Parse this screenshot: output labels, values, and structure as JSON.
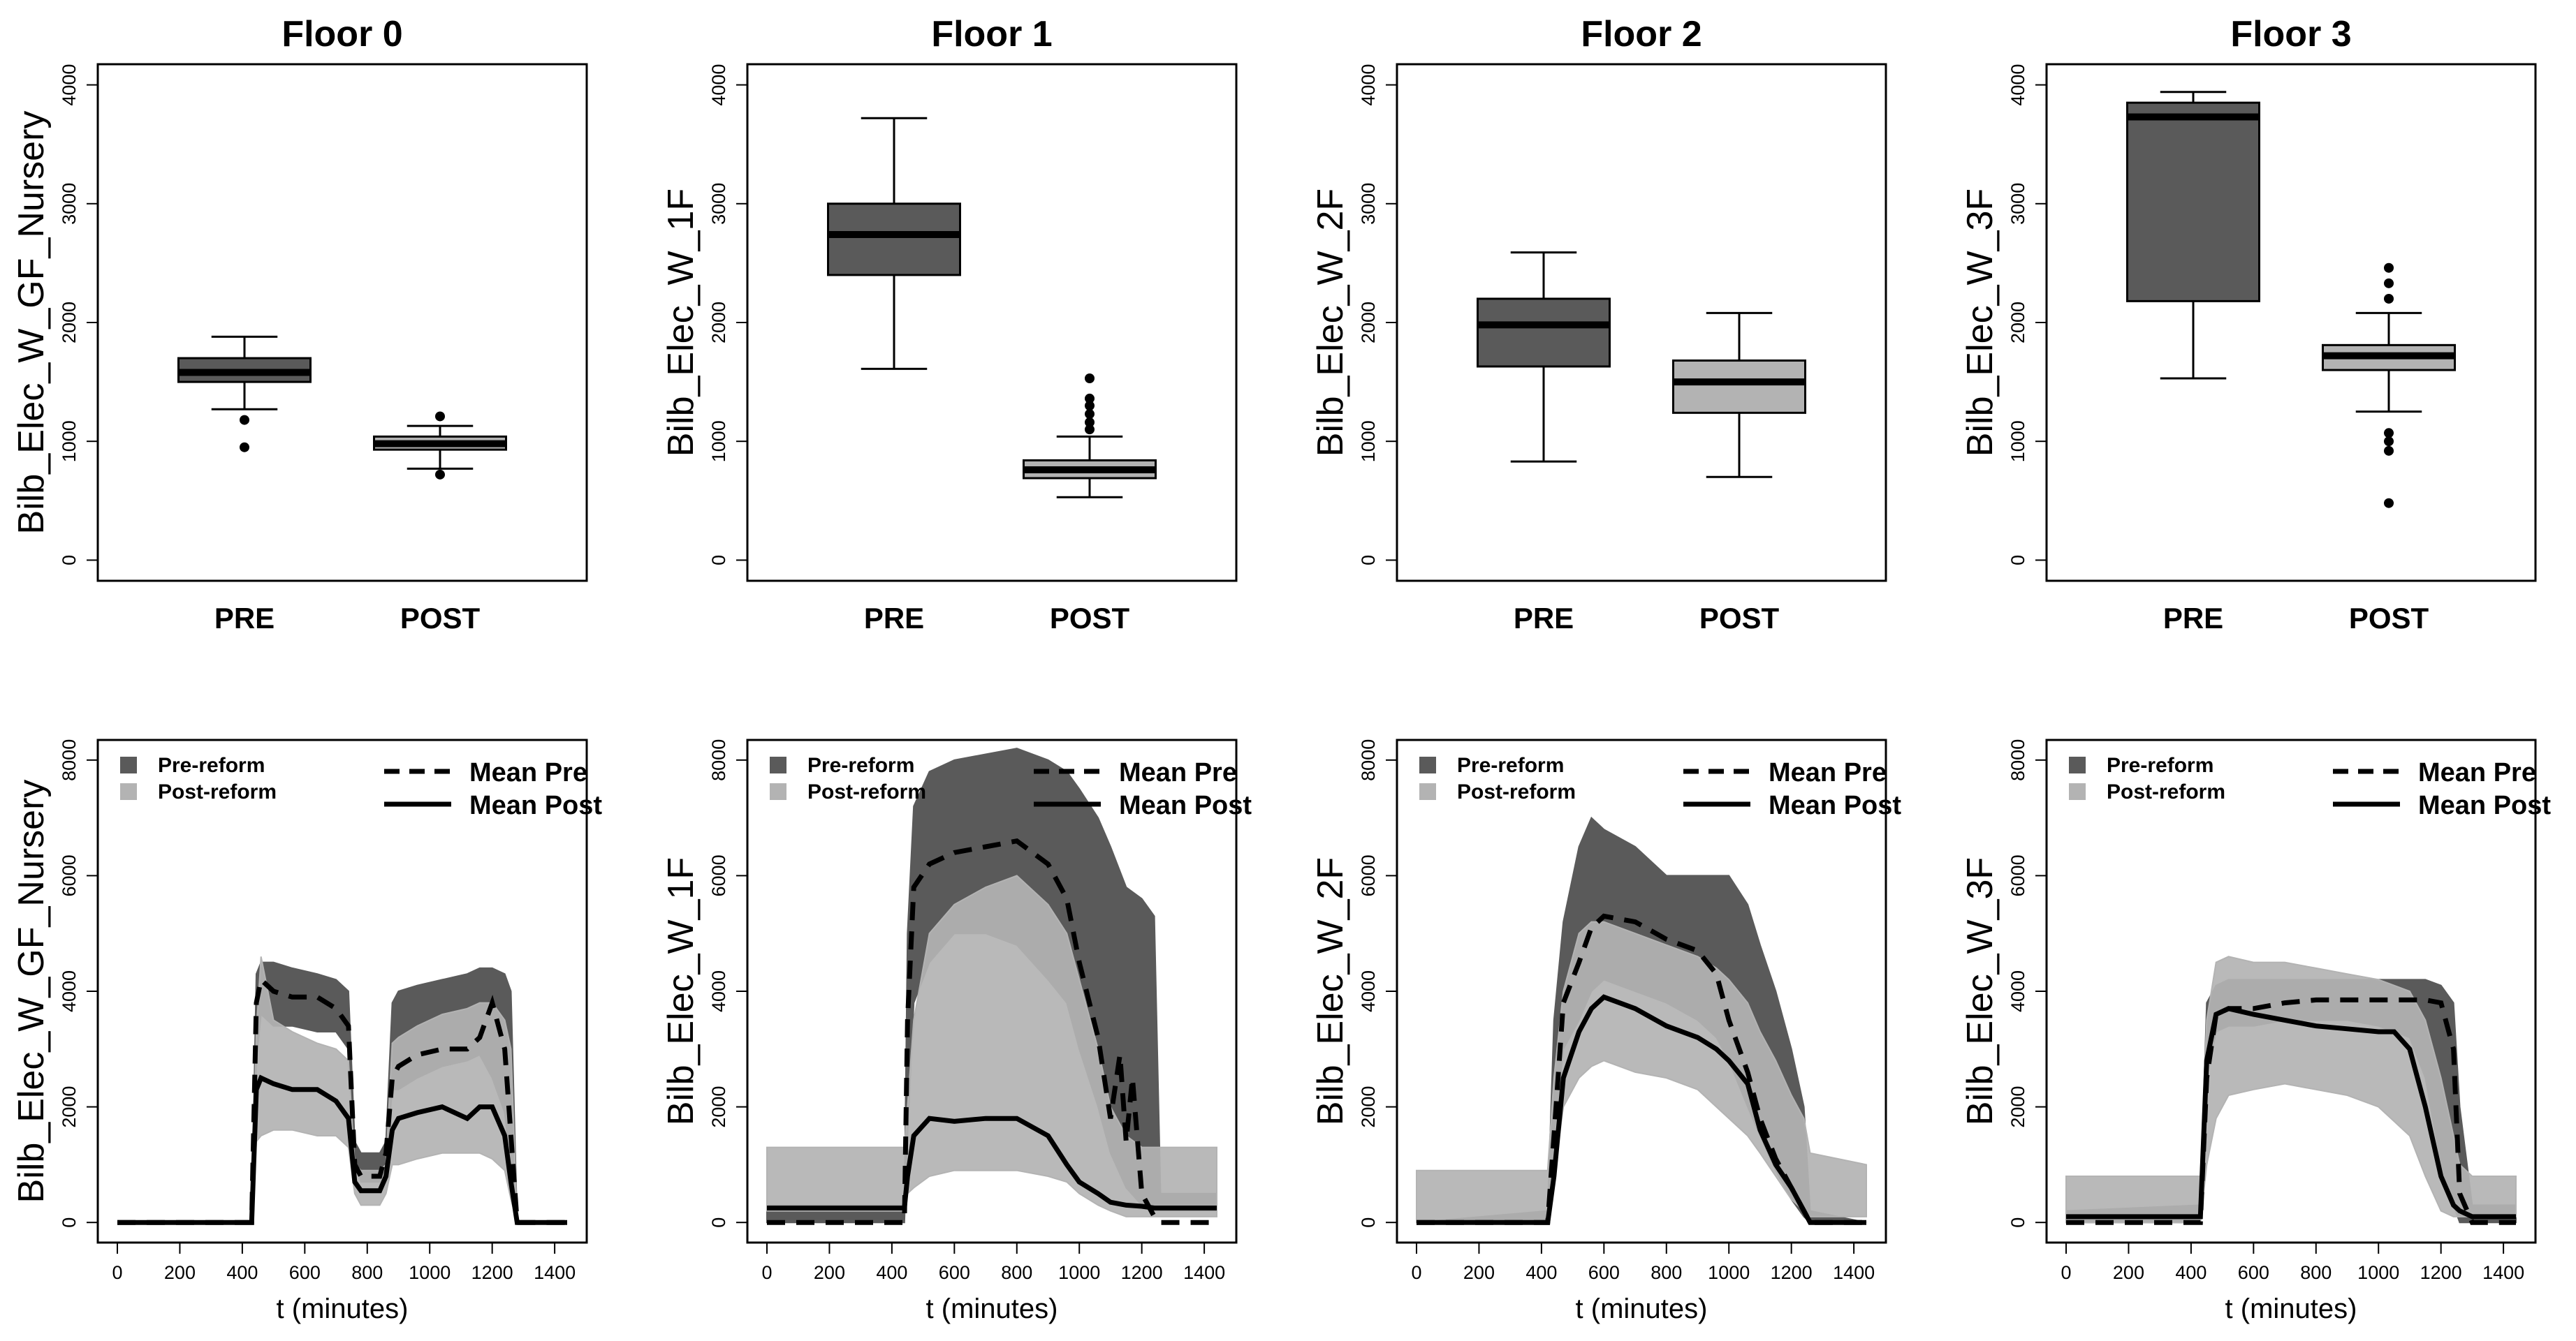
{
  "colors": {
    "pre": "#5a5a5a",
    "post": "#b3b3b3",
    "line": "#000000"
  },
  "chart_data": [
    {
      "type": "box",
      "panel": "box-floor0",
      "title": "Floor 0",
      "ylabel": "Bilb_Elec_W_GF_Nursery",
      "categories": [
        "PRE",
        "POST"
      ],
      "ylim": [
        0,
        4000
      ],
      "yticks": [
        "0",
        "1000",
        "2000",
        "3000",
        "4000"
      ],
      "boxes": [
        {
          "label": "PRE",
          "whisker_low": 1270,
          "q1": 1500,
          "median": 1580,
          "q3": 1700,
          "whisker_high": 1880,
          "outliers": [
            950,
            1180
          ],
          "fill": "pre"
        },
        {
          "label": "POST",
          "whisker_low": 770,
          "q1": 930,
          "median": 980,
          "q3": 1040,
          "whisker_high": 1130,
          "outliers": [
            720,
            1210
          ],
          "fill": "post"
        }
      ]
    },
    {
      "type": "box",
      "panel": "box-floor1",
      "title": "Floor 1",
      "ylabel": "Bilb_Elec_W_1F",
      "categories": [
        "PRE",
        "POST"
      ],
      "ylim": [
        0,
        4000
      ],
      "yticks": [
        "0",
        "1000",
        "2000",
        "3000",
        "4000"
      ],
      "boxes": [
        {
          "label": "PRE",
          "whisker_low": 1610,
          "q1": 2400,
          "median": 2740,
          "q3": 3000,
          "whisker_high": 3720,
          "outliers": [],
          "fill": "pre"
        },
        {
          "label": "POST",
          "whisker_low": 530,
          "q1": 690,
          "median": 760,
          "q3": 840,
          "whisker_high": 1040,
          "outliers": [
            1100,
            1160,
            1230,
            1300,
            1360,
            1530
          ],
          "fill": "post"
        }
      ]
    },
    {
      "type": "box",
      "panel": "box-floor2",
      "title": "Floor 2",
      "ylabel": "Bilb_Elec_W_2F",
      "categories": [
        "PRE",
        "POST"
      ],
      "ylim": [
        0,
        4000
      ],
      "yticks": [
        "0",
        "1000",
        "2000",
        "3000",
        "4000"
      ],
      "boxes": [
        {
          "label": "PRE",
          "whisker_low": 830,
          "q1": 1630,
          "median": 1980,
          "q3": 2200,
          "whisker_high": 2590,
          "outliers": [],
          "fill": "pre"
        },
        {
          "label": "POST",
          "whisker_low": 700,
          "q1": 1240,
          "median": 1500,
          "q3": 1680,
          "whisker_high": 2080,
          "outliers": [],
          "fill": "post"
        }
      ]
    },
    {
      "type": "box",
      "panel": "box-floor3",
      "title": "Floor 3",
      "ylabel": "Bilb_Elec_W_3F",
      "categories": [
        "PRE",
        "POST"
      ],
      "ylim": [
        0,
        4000
      ],
      "yticks": [
        "0",
        "1000",
        "2000",
        "3000",
        "4000"
      ],
      "boxes": [
        {
          "label": "PRE",
          "whisker_low": 1530,
          "q1": 2180,
          "median": 3730,
          "q3": 3850,
          "whisker_high": 3940,
          "outliers": [],
          "fill": "pre"
        },
        {
          "label": "POST",
          "whisker_low": 1250,
          "q1": 1600,
          "median": 1720,
          "q3": 1810,
          "whisker_high": 2080,
          "outliers": [
            480,
            920,
            1000,
            1070,
            2200,
            2330,
            2460
          ],
          "fill": "post"
        }
      ]
    },
    {
      "type": "line",
      "panel": "line-floor0",
      "ylabel": "Bilb_Elec_W_GF_Nursery",
      "xlabel": "t (minutes)",
      "xlim": [
        0,
        1440
      ],
      "ylim": [
        0,
        8000
      ],
      "xticks": [
        "0",
        "200",
        "400",
        "600",
        "800",
        "1000",
        "1200",
        "1400"
      ],
      "yticks": [
        "0",
        "2000",
        "4000",
        "6000",
        "8000"
      ],
      "legend_left": [
        "Pre-reform",
        "Post-reform"
      ],
      "legend_right": [
        "Mean Pre",
        "Mean Post"
      ],
      "band_pre": {
        "x": [
          0,
          430,
          445,
          460,
          500,
          560,
          640,
          700,
          740,
          760,
          780,
          840,
          860,
          880,
          900,
          960,
          1040,
          1120,
          1160,
          1200,
          1240,
          1260,
          1280,
          1300,
          1440
        ],
        "lo": [
          0,
          0,
          2800,
          3600,
          3400,
          3400,
          3300,
          3300,
          3000,
          1100,
          700,
          700,
          1000,
          2300,
          2300,
          2500,
          2700,
          2800,
          2900,
          2500,
          1900,
          900,
          0,
          0,
          0
        ],
        "hi": [
          0,
          0,
          4300,
          4500,
          4500,
          4400,
          4300,
          4200,
          4000,
          1400,
          1200,
          1200,
          1400,
          3800,
          4000,
          4100,
          4200,
          4300,
          4400,
          4400,
          4300,
          4000,
          0,
          0,
          0
        ]
      },
      "band_post": {
        "x": [
          0,
          430,
          445,
          460,
          500,
          560,
          640,
          700,
          740,
          760,
          780,
          840,
          860,
          880,
          900,
          960,
          1040,
          1120,
          1160,
          1200,
          1240,
          1260,
          1280,
          1300,
          1440
        ],
        "lo": [
          0,
          0,
          1400,
          1500,
          1600,
          1600,
          1500,
          1500,
          1300,
          500,
          300,
          300,
          500,
          1000,
          1000,
          1100,
          1200,
          1200,
          1200,
          1100,
          900,
          400,
          0,
          0,
          0
        ],
        "hi": [
          0,
          0,
          3300,
          4600,
          3500,
          3300,
          3100,
          3000,
          2800,
          1000,
          900,
          900,
          1000,
          3100,
          3200,
          3400,
          3600,
          3700,
          3800,
          3800,
          3500,
          3000,
          0,
          0,
          0
        ]
      },
      "mean_pre": {
        "x": [
          0,
          430,
          445,
          460,
          500,
          560,
          640,
          700,
          740,
          760,
          780,
          840,
          860,
          880,
          900,
          960,
          1040,
          1120,
          1160,
          1200,
          1240,
          1260,
          1280,
          1300,
          1440
        ],
        "y": [
          0,
          0,
          3800,
          4200,
          4000,
          3900,
          3900,
          3700,
          3400,
          1000,
          800,
          800,
          1200,
          2500,
          2700,
          2900,
          3000,
          3000,
          3200,
          3800,
          3000,
          1500,
          0,
          0,
          0
        ]
      },
      "mean_post": {
        "x": [
          0,
          430,
          445,
          460,
          500,
          560,
          640,
          700,
          740,
          760,
          780,
          840,
          860,
          880,
          900,
          960,
          1040,
          1120,
          1160,
          1200,
          1240,
          1260,
          1280,
          1300,
          1440
        ],
        "y": [
          0,
          0,
          2300,
          2500,
          2400,
          2300,
          2300,
          2100,
          1800,
          700,
          550,
          550,
          800,
          1600,
          1800,
          1900,
          2000,
          1800,
          2000,
          2000,
          1500,
          700,
          0,
          0,
          0
        ]
      }
    },
    {
      "type": "line",
      "panel": "line-floor1",
      "ylabel": "Bilb_Elec_W_1F",
      "xlabel": "t (minutes)",
      "xlim": [
        0,
        1440
      ],
      "ylim": [
        0,
        8000
      ],
      "xticks": [
        "0",
        "200",
        "400",
        "600",
        "800",
        "1000",
        "1200",
        "1400"
      ],
      "yticks": [
        "0",
        "2000",
        "4000",
        "6000",
        "8000"
      ],
      "legend_left": [
        "Pre-reform",
        "Post-reform"
      ],
      "legend_right": [
        "Mean Pre",
        "Mean Post"
      ],
      "band_pre": {
        "x": [
          0,
          440,
          450,
          470,
          520,
          600,
          700,
          800,
          900,
          960,
          1000,
          1060,
          1100,
          1150,
          1200,
          1240,
          1260,
          1440
        ],
        "lo": [
          0,
          0,
          1500,
          3800,
          4500,
          5000,
          5000,
          4800,
          4200,
          3800,
          3000,
          2000,
          1200,
          600,
          300,
          200,
          200,
          200
        ],
        "hi": [
          300,
          300,
          5000,
          7200,
          7800,
          8000,
          8100,
          8200,
          8000,
          7800,
          7500,
          7000,
          6500,
          5800,
          5600,
          5300,
          500,
          500
        ]
      },
      "band_post": {
        "x": [
          0,
          440,
          450,
          470,
          520,
          600,
          700,
          800,
          900,
          960,
          1000,
          1060,
          1100,
          1150,
          1200,
          1240,
          1260,
          1440
        ],
        "lo": [
          200,
          200,
          500,
          600,
          800,
          900,
          900,
          900,
          800,
          700,
          500,
          300,
          200,
          100,
          100,
          100,
          100,
          100
        ],
        "hi": [
          1300,
          1300,
          2000,
          3500,
          5000,
          5500,
          5800,
          6000,
          5500,
          5000,
          4200,
          3000,
          2000,
          1500,
          1300,
          1300,
          1300,
          1300
        ]
      },
      "mean_pre": {
        "x": [
          0,
          440,
          450,
          470,
          520,
          600,
          700,
          800,
          900,
          960,
          1000,
          1060,
          1100,
          1130,
          1150,
          1170,
          1200,
          1240,
          1260,
          1440
        ],
        "y": [
          0,
          0,
          3500,
          5800,
          6200,
          6400,
          6500,
          6600,
          6200,
          5600,
          4500,
          3200,
          1800,
          2900,
          1400,
          2500,
          500,
          100,
          0,
          0
        ]
      },
      "mean_post": {
        "x": [
          0,
          440,
          450,
          470,
          520,
          600,
          700,
          800,
          900,
          960,
          1000,
          1060,
          1100,
          1150,
          1200,
          1240,
          1260,
          1440
        ],
        "y": [
          250,
          250,
          800,
          1500,
          1800,
          1750,
          1800,
          1800,
          1500,
          1000,
          700,
          500,
          350,
          300,
          280,
          250,
          250,
          250
        ]
      }
    },
    {
      "type": "line",
      "panel": "line-floor2",
      "ylabel": "Bilb_Elec_W_2F",
      "xlabel": "t (minutes)",
      "xlim": [
        0,
        1440
      ],
      "ylim": [
        0,
        8000
      ],
      "xticks": [
        "0",
        "200",
        "400",
        "600",
        "800",
        "1000",
        "1200",
        "1400"
      ],
      "yticks": [
        "0",
        "2000",
        "4000",
        "6000",
        "8000"
      ],
      "legend_left": [
        "Pre-reform",
        "Post-reform"
      ],
      "legend_right": [
        "Mean Pre",
        "Mean Post"
      ],
      "band_pre": {
        "x": [
          0,
          420,
          440,
          470,
          520,
          560,
          600,
          700,
          800,
          900,
          960,
          1000,
          1060,
          1100,
          1150,
          1200,
          1240,
          1260,
          1440
        ],
        "lo": [
          0,
          0,
          1500,
          3000,
          3500,
          4000,
          4200,
          4000,
          3800,
          3500,
          3200,
          2800,
          2000,
          1500,
          900,
          400,
          100,
          0,
          0
        ],
        "hi": [
          0,
          200,
          3500,
          5200,
          6500,
          7000,
          6800,
          6500,
          6000,
          6000,
          6000,
          6000,
          5500,
          4800,
          4000,
          3000,
          2000,
          200,
          0
        ]
      },
      "band_post": {
        "x": [
          0,
          420,
          440,
          470,
          520,
          560,
          600,
          700,
          800,
          900,
          960,
          1000,
          1060,
          1100,
          1150,
          1200,
          1240,
          1260,
          1440
        ],
        "lo": [
          0,
          0,
          800,
          2000,
          2500,
          2700,
          2800,
          2600,
          2500,
          2300,
          2000,
          1800,
          1500,
          1200,
          800,
          400,
          200,
          100,
          100
        ],
        "hi": [
          900,
          900,
          2500,
          4000,
          5000,
          5200,
          5200,
          5000,
          4800,
          4600,
          4400,
          4200,
          3800,
          3300,
          2800,
          2200,
          1800,
          1200,
          1000
        ]
      },
      "mean_pre": {
        "x": [
          0,
          420,
          440,
          470,
          520,
          560,
          600,
          700,
          800,
          900,
          960,
          1000,
          1060,
          1100,
          1150,
          1200,
          1240,
          1260,
          1440
        ],
        "y": [
          0,
          0,
          1500,
          3800,
          4500,
          5100,
          5300,
          5200,
          4900,
          4700,
          4300,
          3500,
          2600,
          1800,
          1100,
          600,
          200,
          0,
          0
        ]
      },
      "mean_post": {
        "x": [
          0,
          420,
          440,
          470,
          520,
          560,
          600,
          700,
          800,
          900,
          960,
          1000,
          1060,
          1100,
          1150,
          1200,
          1240,
          1260,
          1440
        ],
        "y": [
          0,
          0,
          800,
          2500,
          3300,
          3700,
          3900,
          3700,
          3400,
          3200,
          3000,
          2800,
          2400,
          1600,
          1000,
          600,
          200,
          0,
          0
        ]
      }
    },
    {
      "type": "line",
      "panel": "line-floor3",
      "ylabel": "Bilb_Elec_W_3F",
      "xlabel": "t (minutes)",
      "xlim": [
        0,
        1440
      ],
      "ylim": [
        0,
        8000
      ],
      "xticks": [
        "0",
        "200",
        "400",
        "600",
        "800",
        "1000",
        "1200",
        "1400"
      ],
      "yticks": [
        "0",
        "2000",
        "4000",
        "6000",
        "8000"
      ],
      "legend_left": [
        "Pre-reform",
        "Post-reform"
      ],
      "legend_right": [
        "Mean Pre",
        "Mean Post"
      ],
      "band_pre": {
        "x": [
          0,
          430,
          450,
          480,
          520,
          600,
          700,
          800,
          900,
          1000,
          1100,
          1150,
          1200,
          1240,
          1260,
          1300,
          1440
        ],
        "lo": [
          0,
          0,
          2500,
          3300,
          3400,
          3400,
          3500,
          3500,
          3500,
          3400,
          3200,
          2500,
          1000,
          300,
          0,
          0,
          0
        ],
        "hi": [
          200,
          300,
          3800,
          4100,
          4200,
          4200,
          4200,
          4200,
          4200,
          4200,
          4200,
          4200,
          4100,
          3800,
          2000,
          300,
          300
        ]
      },
      "band_post": {
        "x": [
          0,
          430,
          450,
          480,
          520,
          600,
          700,
          800,
          900,
          1000,
          1100,
          1150,
          1200,
          1240,
          1260,
          1300,
          1440
        ],
        "lo": [
          0,
          0,
          1000,
          1800,
          2200,
          2300,
          2400,
          2300,
          2200,
          2000,
          1500,
          800,
          200,
          100,
          100,
          100,
          100
        ],
        "hi": [
          800,
          800,
          3500,
          4500,
          4600,
          4500,
          4500,
          4400,
          4300,
          4200,
          4000,
          3500,
          2500,
          1500,
          1000,
          800,
          800
        ]
      },
      "mean_pre": {
        "x": [
          0,
          430,
          450,
          480,
          520,
          600,
          700,
          800,
          900,
          1000,
          1100,
          1150,
          1200,
          1240,
          1260,
          1300,
          1440
        ],
        "y": [
          0,
          0,
          2500,
          3600,
          3700,
          3700,
          3800,
          3850,
          3850,
          3850,
          3850,
          3850,
          3800,
          3000,
          500,
          0,
          0
        ]
      },
      "mean_post": {
        "x": [
          0,
          430,
          450,
          480,
          520,
          600,
          700,
          800,
          900,
          1000,
          1050,
          1100,
          1150,
          1200,
          1240,
          1260,
          1300,
          1440
        ],
        "y": [
          100,
          100,
          2800,
          3600,
          3700,
          3600,
          3500,
          3400,
          3350,
          3300,
          3300,
          3000,
          2000,
          800,
          300,
          200,
          100,
          100
        ]
      }
    }
  ]
}
